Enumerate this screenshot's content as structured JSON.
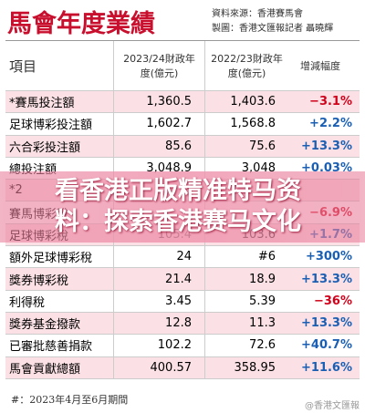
{
  "header": {
    "title": "馬會年度業績",
    "source": "資料來源：香港賽馬會",
    "credit": "製圖：香港文匯報記者 聶曉輝"
  },
  "table": {
    "columns": [
      "項目",
      "2023/24財政年度(億元)",
      "2022/23財政年度(億元)",
      "增減幅度"
    ],
    "rows": [
      {
        "item": "*賽馬投注額",
        "fy2324": "1,360.5",
        "fy2223": "1,403.6",
        "change": "−3.1%"
      },
      {
        "item": "足球博彩投注額",
        "fy2324": "1,602.7",
        "fy2223": "1,568.8",
        "change": "+2.2%"
      },
      {
        "item": "六合彩投注額",
        "fy2324": "85.6",
        "fy2223": "75.6",
        "change": "+13.3%"
      },
      {
        "item": "總投注額",
        "fy2324": "3,048.9",
        "fy2223": "3,048",
        "change": "+0.03%"
      },
      {
        "item": "*2"
      },
      {
        "item": "賽馬博彩稅",
        "change": "−6.9%"
      },
      {
        "item": "足球博彩稅",
        "fy2324": "105.4",
        "fy2223": "103.6",
        "change": "+1.7%"
      },
      {
        "item": "額外足球博彩稅",
        "fy2324": "24",
        "fy2223": "#6",
        "change": "+300%"
      },
      {
        "item": "獎券博彩稅",
        "fy2324": "21.4",
        "fy2223": "18.9",
        "change": "+13.3%"
      },
      {
        "item": "利得稅",
        "fy2324": "3.45",
        "fy2223": "5.39",
        "change": "−36%"
      },
      {
        "item": "獎券基金撥款",
        "fy2324": "12.8",
        "fy2223": "11.3",
        "change": "+13.3%"
      },
      {
        "item": "已審批慈善捐款",
        "fy2324": "102.2",
        "fy2223": "72.6",
        "change": "+40.7%"
      },
      {
        "item": "馬會貢獻總額",
        "fy2324": "400.57",
        "fy2223": "358.95",
        "change": "+11.6%"
      }
    ]
  },
  "footnote": "#：2023年4月至6月期間",
  "banner": "看香港正版精准特马资料：探索香港赛马文化",
  "watermark": "@香港文匯報"
}
